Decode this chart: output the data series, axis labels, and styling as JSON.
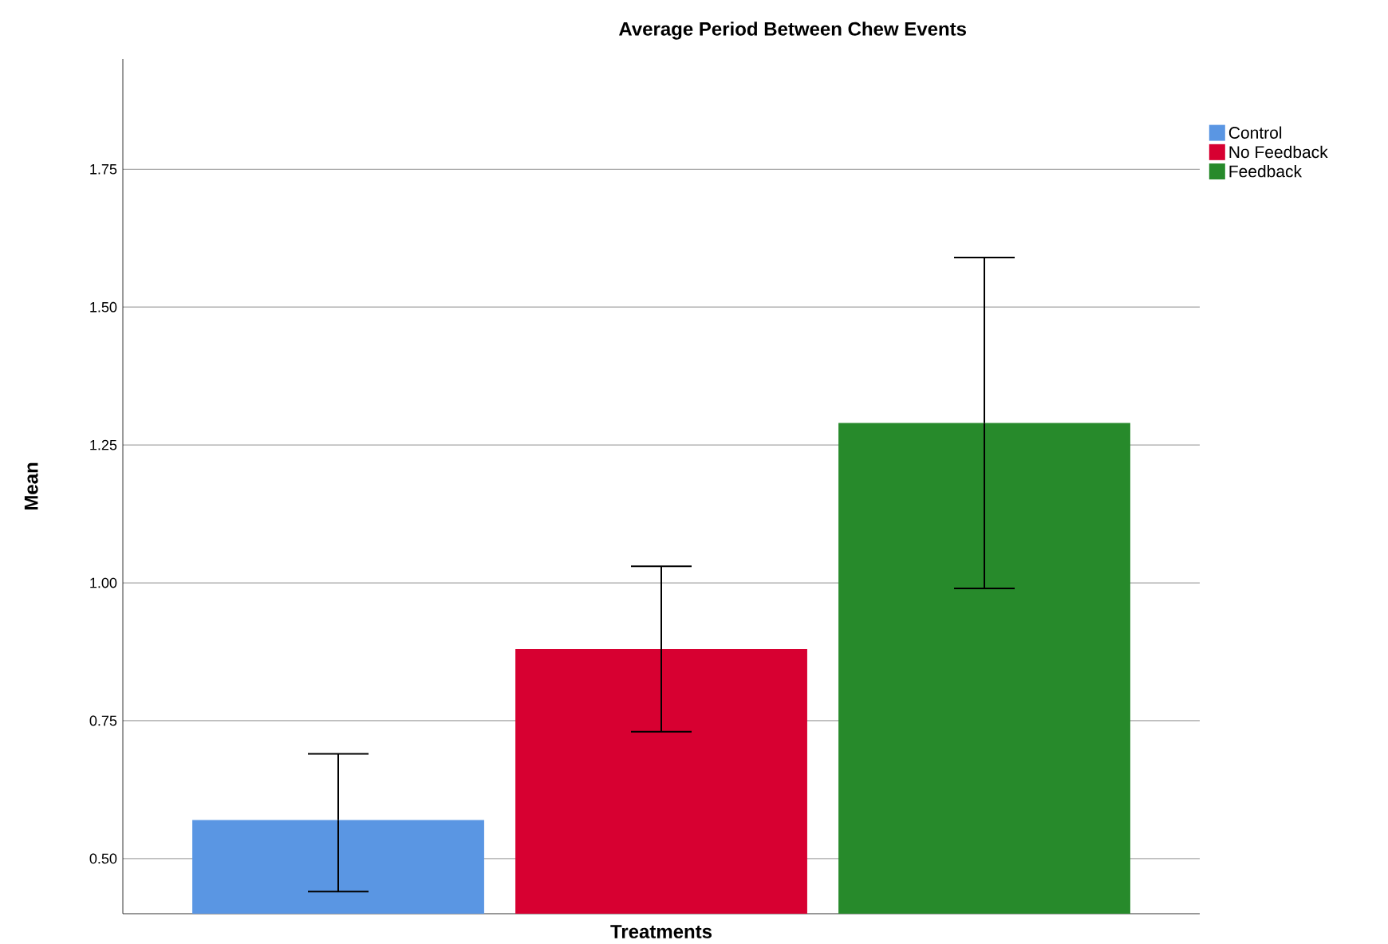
{
  "chart_data": {
    "type": "bar",
    "title": "Average Period Between Chew Events",
    "xlabel": "Treatments",
    "ylabel": "Mean",
    "categories": [
      null
    ],
    "series": [
      {
        "name": "Control",
        "color": "#5a96e3",
        "values": [
          0.57
        ],
        "errors": [
          [
            0.44,
            0.69
          ]
        ]
      },
      {
        "name": "No Feedback",
        "color": "#d70031",
        "values": [
          0.88
        ],
        "errors": [
          [
            0.73,
            1.03
          ]
        ]
      },
      {
        "name": "Feedback",
        "color": "#278a2b",
        "values": [
          1.29
        ],
        "errors": [
          [
            0.99,
            1.59
          ]
        ]
      }
    ],
    "ylim": [
      0.4,
      1.95
    ],
    "yticks": [
      {
        "value": 0.5,
        "label": "0.50"
      },
      {
        "value": 0.75,
        "label": "0.75"
      },
      {
        "value": 1.0,
        "label": "1.00"
      },
      {
        "value": 1.25,
        "label": "1.25"
      },
      {
        "value": 1.5,
        "label": "1.50"
      },
      {
        "value": 1.75,
        "label": "1.75"
      }
    ],
    "grid": "y",
    "legend": "top right",
    "tick_labels": "y"
  }
}
